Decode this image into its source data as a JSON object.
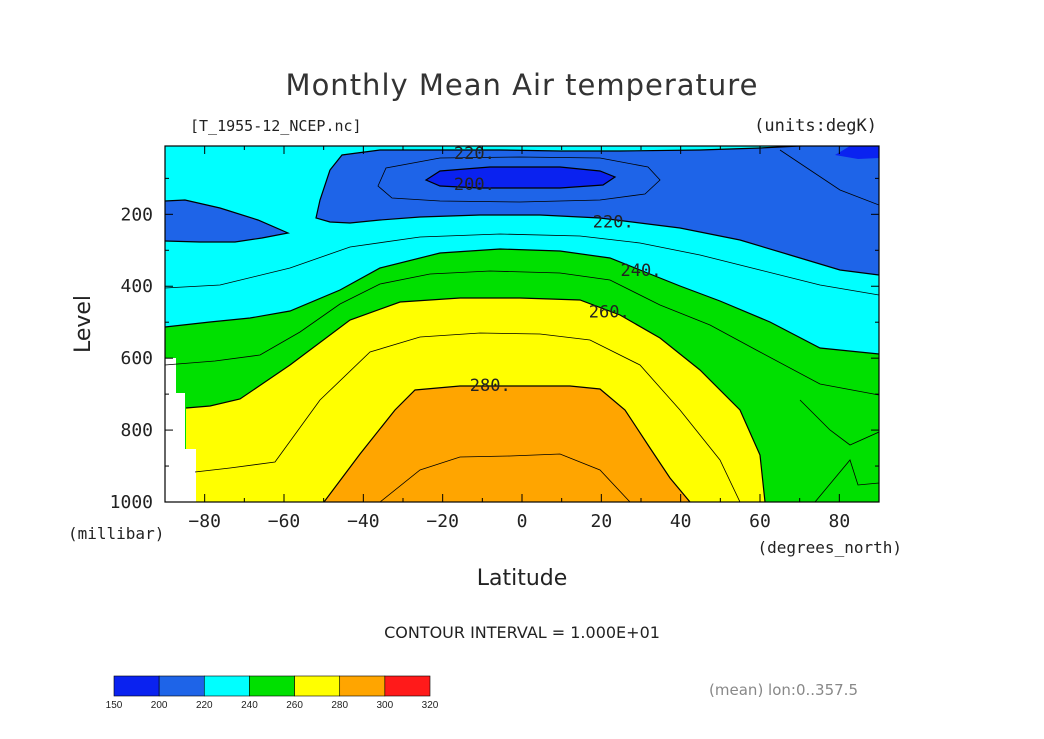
{
  "chart_data": {
    "type": "contour",
    "title": "Monthly Mean Air temperature",
    "source_file": "[T_1955-12_NCEP.nc]",
    "units_label": "(units:degK)",
    "xlabel": "Latitude",
    "x_units": "(degrees_north)",
    "ylabel": "Level",
    "y_units": "(millibar)",
    "xlim": [
      -90,
      90
    ],
    "ylim": [
      1000,
      10
    ],
    "y_inverted": true,
    "x_ticks": [
      -80,
      -60,
      -40,
      -20,
      0,
      20,
      40,
      60,
      80
    ],
    "x_tick_labels": [
      "−80",
      "−60",
      "−40",
      "−20",
      "0",
      "20",
      "40",
      "60",
      "80"
    ],
    "y_ticks": [
      200,
      400,
      600,
      800,
      1000
    ],
    "y_tick_labels": [
      "200",
      "400",
      "600",
      "800",
      "1000"
    ],
    "contour_interval_text": "CONTOUR INTERVAL = 1.000E+01",
    "contour_interval": 10,
    "contour_line_labels": [
      {
        "text": "220.",
        "x": -12,
        "y": 30
      },
      {
        "text": "200.",
        "x": -12,
        "y": 115
      },
      {
        "text": "220.",
        "x": 23,
        "y": 220
      },
      {
        "text": "240.",
        "x": 30,
        "y": 355
      },
      {
        "text": "260.",
        "x": 22,
        "y": 470
      },
      {
        "text": "280.",
        "x": -8,
        "y": 675
      }
    ],
    "filled_levels": [
      {
        "min": 150,
        "max": 200,
        "color": "#0a22f0"
      },
      {
        "min": 200,
        "max": 220,
        "color": "#1e64e8"
      },
      {
        "min": 220,
        "max": 240,
        "color": "#00ffff"
      },
      {
        "min": 240,
        "max": 260,
        "color": "#00e000"
      },
      {
        "min": 260,
        "max": 280,
        "color": "#ffff00"
      },
      {
        "min": 280,
        "max": 300,
        "color": "#ffa500"
      },
      {
        "min": 300,
        "max": 320,
        "color": "#ff1a1a"
      }
    ],
    "colorbar_tick_labels": [
      "150",
      "200",
      "220",
      "240",
      "260",
      "280",
      "300",
      "320"
    ],
    "footnote": "(mean) lon:0..357.5",
    "grid": false
  }
}
